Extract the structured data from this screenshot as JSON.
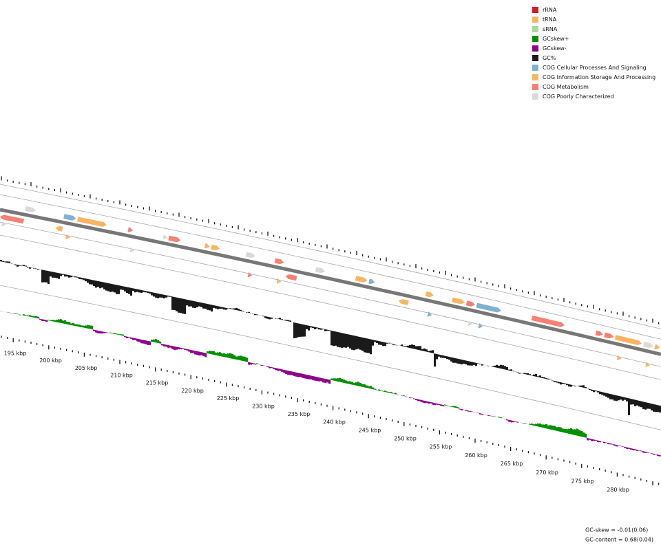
{
  "legend": [
    {
      "label": "rRNA",
      "color": "#d7191c"
    },
    {
      "label": "tRNA",
      "color": "#fdb462"
    },
    {
      "label": "sRNA",
      "color": "#a6dba0"
    },
    {
      "label": "GCskew+",
      "color": "#008f00"
    },
    {
      "label": "GCskew-",
      "color": "#8f008f"
    },
    {
      "label": "GC%",
      "color": "#1a1a1a"
    },
    {
      "label": "COG Cellular Processes And Signaling",
      "color": "#80b1d3"
    },
    {
      "label": "COG Information Storage And Processing",
      "color": "#fdb462"
    },
    {
      "label": "COG Metabolism",
      "color": "#fb8072"
    },
    {
      "label": "COG Poorly Characterized",
      "color": "#d9d9d9"
    }
  ],
  "scale_labels": [
    "195 kbp",
    "200 kbp",
    "205 kbp",
    "210 kbp",
    "215 kbp",
    "220 kbp",
    "225 kbp",
    "230 kbp",
    "235 kbp",
    "240 kbp",
    "245 kbp",
    "250 kbp",
    "255 kbp",
    "260 kbp",
    "265 kbp",
    "270 kbp",
    "275 kbp",
    "280 kbp"
  ],
  "stats": {
    "gc_skew": "GC-skew = -0.01(0.06)",
    "gc_content": "GC-content = 0.68(0.04)"
  }
}
